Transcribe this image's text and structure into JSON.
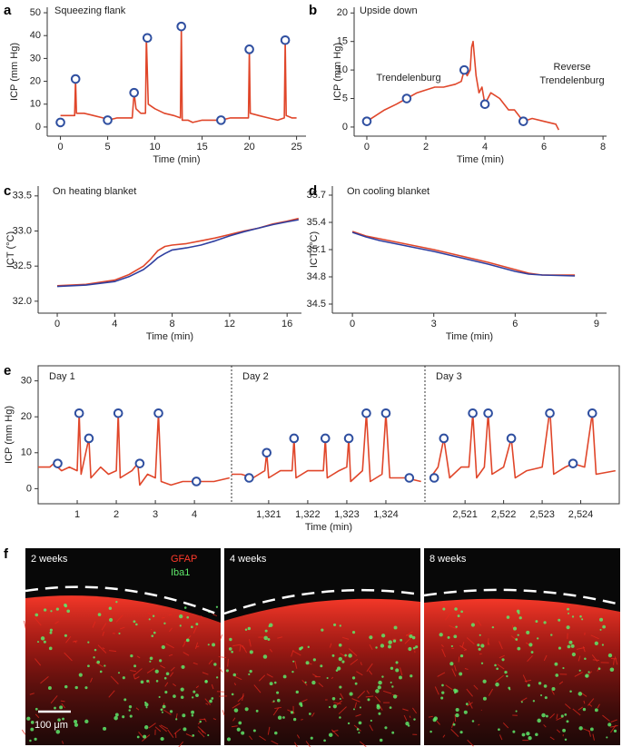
{
  "chart_data": [
    {
      "type": "line",
      "label": "a",
      "title": "Squeezing flank",
      "xlabel": "Time (min)",
      "ylabel": "ICP (mm Hg)",
      "xlim": [
        -1.4,
        26
      ],
      "ylim": [
        -4,
        52.4
      ],
      "xticks": [
        0,
        5,
        10,
        15,
        20,
        25
      ],
      "yticks": [
        0,
        10,
        20,
        30,
        40,
        50
      ],
      "series": [
        {
          "color": "#e0462a",
          "x": [
            0,
            0.5,
            1.5,
            1.6,
            1.7,
            2.5,
            3.5,
            4.5,
            5,
            6,
            7,
            7.6,
            7.8,
            8,
            8.5,
            9,
            9.1,
            9.3,
            10,
            11,
            12,
            12.7,
            12.8,
            12.9,
            13.5,
            14,
            15,
            16,
            17,
            18,
            19,
            19.9,
            20,
            20.1,
            21,
            22,
            23,
            23.7,
            23.8,
            23.9,
            24.5,
            25
          ],
          "values": [
            5,
            5,
            5,
            21,
            6,
            6,
            5,
            4,
            3,
            4,
            4,
            4,
            15,
            8,
            6,
            6,
            39,
            10,
            8,
            6,
            5,
            4,
            44,
            3,
            3,
            2,
            3,
            3,
            3,
            4,
            4,
            4,
            34,
            6,
            5,
            4,
            3,
            4,
            38,
            5,
            4,
            4
          ]
        },
        {
          "color": "#2f4fa0",
          "marker": "circle",
          "x": [
            0,
            1.6,
            5,
            7.8,
            9.2,
            12.8,
            17,
            20,
            23.8
          ],
          "values": [
            2,
            21,
            3,
            15,
            39,
            44,
            3,
            34,
            38
          ]
        }
      ]
    },
    {
      "type": "line",
      "label": "b",
      "title": "Upside down",
      "xlabel": "Time (min)",
      "ylabel": "ICP (mm Hg)",
      "xlim": [
        -0.43,
        8.12
      ],
      "ylim": [
        -1.6,
        21
      ],
      "xticks": [
        0,
        2,
        4,
        6,
        8
      ],
      "yticks": [
        0,
        5,
        10,
        15,
        20
      ],
      "annotations": [
        [
          "Trendelenburg"
        ],
        [
          "Reverse",
          "Trendelenburg"
        ]
      ],
      "series": [
        {
          "color": "#e0462a",
          "x": [
            0,
            0.3,
            0.6,
            1,
            1.35,
            1.7,
            2,
            2.3,
            2.6,
            3,
            3.2,
            3.3,
            3.4,
            3.5,
            3.55,
            3.6,
            3.7,
            3.8,
            3.9,
            4,
            4.2,
            4.5,
            4.8,
            5,
            5.3,
            5.6,
            6,
            6.4,
            6.5
          ],
          "values": [
            1,
            2,
            3,
            4,
            5,
            6,
            6.5,
            7,
            7,
            7.5,
            8,
            10,
            9,
            10,
            14,
            15,
            9,
            6,
            7,
            4,
            6,
            5,
            3,
            3,
            1,
            1.5,
            1,
            0.5,
            -0.5
          ]
        },
        {
          "color": "#2f4fa0",
          "marker": "circle",
          "x": [
            0,
            1.35,
            3.3,
            4,
            5.3
          ],
          "values": [
            1,
            5,
            10,
            4,
            1
          ]
        }
      ]
    },
    {
      "type": "line",
      "label": "c",
      "title": "On heating blanket",
      "xlabel": "Time (min)",
      "ylabel": "ICT (°C)",
      "xlim": [
        -1.33,
        17
      ],
      "ylim": [
        31.83,
        33.64
      ],
      "xticks": [
        0,
        4,
        8,
        12,
        16
      ],
      "yticks": [
        {
          "value": 32,
          "label": "32.0"
        },
        32.5,
        {
          "value": 33,
          "label": "33.0"
        },
        33.5
      ],
      "series": [
        {
          "color": "#e0462a",
          "x": [
            0,
            2,
            4,
            5,
            6,
            6.5,
            7,
            7.5,
            8,
            9,
            10,
            11,
            12,
            13,
            14,
            15,
            16,
            16.8
          ],
          "values": [
            32.22,
            32.24,
            32.3,
            32.38,
            32.5,
            32.6,
            32.72,
            32.78,
            32.8,
            32.82,
            32.86,
            32.9,
            32.95,
            33.0,
            33.04,
            33.1,
            33.14,
            33.18
          ]
        },
        {
          "color": "#2f3fa0",
          "x": [
            0,
            2,
            4,
            5,
            6,
            6.5,
            7,
            7.5,
            8,
            9,
            10,
            11,
            12,
            13,
            14,
            15,
            16,
            16.8
          ],
          "values": [
            32.21,
            32.23,
            32.28,
            32.35,
            32.45,
            32.53,
            32.62,
            32.68,
            32.73,
            32.76,
            32.8,
            32.86,
            32.93,
            32.99,
            33.04,
            33.09,
            33.13,
            33.16
          ]
        }
      ]
    },
    {
      "type": "line",
      "label": "d",
      "title": "On cooling blanket",
      "xlabel": "Time (min)",
      "ylabel": "ICT (°C)",
      "xlim": [
        -0.74,
        9.37
      ],
      "ylim": [
        34.4,
        35.8
      ],
      "xticks": [
        0,
        3,
        6,
        9
      ],
      "yticks": [
        34.5,
        34.8,
        35.1,
        35.4,
        35.7
      ],
      "series": [
        {
          "color": "#e0462a",
          "x": [
            0,
            0.5,
            1,
            2,
            3,
            4,
            5,
            6,
            6.5,
            7,
            8.2
          ],
          "values": [
            35.3,
            35.25,
            35.22,
            35.16,
            35.1,
            35.03,
            34.96,
            34.88,
            34.84,
            34.82,
            34.82
          ]
        },
        {
          "color": "#2f3fa0",
          "x": [
            0,
            0.5,
            1,
            2,
            3,
            4,
            5,
            6,
            6.5,
            7,
            8.2
          ],
          "values": [
            35.29,
            35.24,
            35.2,
            35.14,
            35.08,
            35.01,
            34.94,
            34.86,
            34.83,
            34.82,
            34.81
          ]
        }
      ]
    },
    {
      "type": "segmented-line",
      "label": "e",
      "xlabel": "Time (min)",
      "ylabel": "ICP (mm Hg)",
      "ylim": [
        -4.2,
        34.2
      ],
      "yticks": [
        0,
        10,
        20,
        30
      ],
      "segments": [
        {
          "title": "Day 1",
          "xlim": [
            0,
            4.95
          ],
          "xticks": [
            1,
            2,
            3,
            4
          ],
          "series": [
            {
              "color": "#e0462a",
              "x": [
                0,
                0.3,
                0.4,
                0.6,
                0.8,
                1,
                1.05,
                1.1,
                1.3,
                1.35,
                1.6,
                1.8,
                2,
                2.05,
                2.1,
                2.4,
                2.55,
                2.6,
                2.8,
                3,
                3.08,
                3.15,
                3.4,
                3.7,
                4,
                4.5,
                4.9
              ],
              "values": [
                6,
                6,
                7,
                5,
                6,
                5,
                21,
                4,
                14,
                3,
                6,
                4,
                5,
                21,
                3,
                5,
                7,
                1,
                4,
                3,
                21,
                2,
                1,
                2,
                2,
                2,
                3
              ]
            },
            {
              "color": "#2f4fa0",
              "marker": "circle",
              "x": [
                0.5,
                1.05,
                1.3,
                2.05,
                2.6,
                3.08,
                4.05
              ],
              "values": [
                7,
                21,
                14,
                21,
                7,
                21,
                2
              ]
            }
          ]
        },
        {
          "title": "Day 2",
          "xlim": [
            1320.05,
            1325
          ],
          "xticks": [
            {
              "value": 1321,
              "label": "1,321"
            },
            {
              "value": 1322,
              "label": "1,322"
            },
            {
              "value": 1323,
              "label": "1,323"
            },
            {
              "value": 1324,
              "label": "1,324"
            }
          ],
          "series": [
            {
              "color": "#e0462a",
              "x": [
                1320.05,
                1320.3,
                1320.6,
                1320.9,
                1320.95,
                1321,
                1321.3,
                1321.6,
                1321.65,
                1321.7,
                1322,
                1322.4,
                1322.45,
                1322.5,
                1322.8,
                1323,
                1323.05,
                1323.1,
                1323.4,
                1323.5,
                1323.6,
                1323.9,
                1324,
                1324.1,
                1324.5,
                1324.9
              ],
              "values": [
                4,
                4,
                3,
                5,
                10,
                3,
                5,
                5,
                14,
                3,
                5,
                5,
                14,
                3,
                5,
                6,
                14,
                2,
                5,
                21,
                2,
                4,
                21,
                3,
                3,
                2
              ]
            },
            {
              "color": "#2f4fa0",
              "marker": "circle",
              "x": [
                1320.5,
                1320.95,
                1321.65,
                1322.45,
                1323.05,
                1323.5,
                1324,
                1324.6
              ],
              "values": [
                3,
                10,
                14,
                14,
                14,
                21,
                21,
                3
              ]
            }
          ]
        },
        {
          "title": "Day 3",
          "xlim": [
            2519.96,
            2525
          ],
          "xticks": [
            {
              "value": 2521,
              "label": "2,521"
            },
            {
              "value": 2522,
              "label": "2,522"
            },
            {
              "value": 2523,
              "label": "2,523"
            },
            {
              "value": 2524,
              "label": "2,524"
            }
          ],
          "series": [
            {
              "color": "#e0462a",
              "x": [
                2520.1,
                2520.3,
                2520.45,
                2520.6,
                2520.9,
                2521.1,
                2521.2,
                2521.3,
                2521.5,
                2521.6,
                2521.7,
                2522,
                2522.2,
                2522.3,
                2522.6,
                2523,
                2523.2,
                2523.3,
                2523.6,
                2523.8,
                2524.1,
                2524.3,
                2524.4,
                2524.9
              ],
              "values": [
                3,
                6,
                14,
                3,
                6,
                6,
                21,
                3,
                6,
                21,
                4,
                6,
                14,
                3,
                5,
                6,
                22,
                4,
                6,
                7,
                6,
                21,
                4,
                5
              ]
            },
            {
              "color": "#2f4fa0",
              "marker": "circle",
              "x": [
                2520.2,
                2520.45,
                2521.2,
                2521.6,
                2522.2,
                2523.2,
                2523.8,
                2524.3
              ],
              "values": [
                3,
                14,
                21,
                21,
                14,
                21,
                7,
                21
              ]
            }
          ]
        }
      ]
    }
  ],
  "micrograph": {
    "label": "f",
    "panels": [
      {
        "title": "2 weeks"
      },
      {
        "title": "4 weeks"
      },
      {
        "title": "8 weeks"
      }
    ],
    "stains": [
      "GFAP",
      "Iba1"
    ],
    "scale_bar": "100 μm"
  }
}
